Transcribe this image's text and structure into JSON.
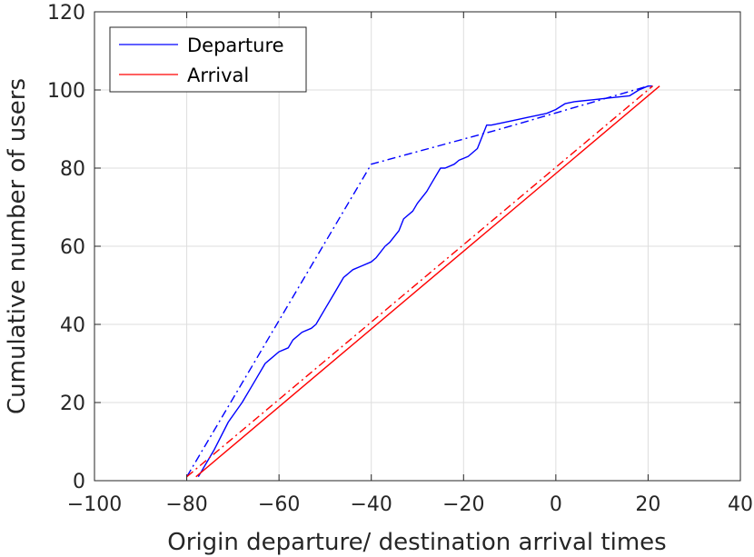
{
  "chart_data": {
    "type": "line",
    "title": "",
    "xlabel": "Origin departure/ destination arrival times",
    "ylabel": "Cumulative number of users",
    "xlim": [
      -100,
      40
    ],
    "ylim": [
      0,
      120
    ],
    "xticks": [
      "−100",
      "−80",
      "−60",
      "−40",
      "−20",
      "0",
      "20",
      "40"
    ],
    "yticks": [
      "0",
      "20",
      "40",
      "60",
      "80",
      "100",
      "120"
    ],
    "grid": true,
    "legend_position": "top-left",
    "legend": [
      {
        "label": "Departure",
        "color": "#0000ff"
      },
      {
        "label": "Arrival",
        "color": "#ff0000"
      }
    ],
    "series": [
      {
        "color": "#0000ff",
        "style": "solid",
        "x": [
          -77.5,
          -74,
          -71,
          -68,
          -66,
          -65,
          -63,
          -62,
          -60,
          -58,
          -57,
          -55,
          -53,
          -52,
          -50,
          -48,
          -46,
          -45,
          -44,
          -42,
          -40,
          -39,
          -37,
          -36,
          -34,
          -33,
          -31,
          -30,
          -28,
          -27,
          -25,
          -24,
          -22,
          -21,
          -19,
          -17,
          -16,
          -15,
          -14,
          -10,
          -6,
          -2,
          0,
          2,
          4,
          8,
          12,
          16,
          18,
          20,
          21
        ],
        "y": [
          1,
          8,
          15,
          20,
          24,
          26,
          30,
          31,
          33,
          34,
          36,
          38,
          39,
          40,
          44,
          48,
          52,
          53,
          54,
          55,
          56,
          57,
          60,
          61,
          64,
          67,
          69,
          71,
          74,
          76,
          80,
          80,
          81,
          82,
          83,
          85,
          88,
          91,
          91,
          92,
          93,
          94,
          95,
          96.5,
          97,
          97.5,
          98,
          98.5,
          100,
          101,
          101
        ]
      },
      {
        "color": "#0000ff",
        "style": "dashdot",
        "x": [
          -80,
          -40,
          -12,
          20,
          21
        ],
        "y": [
          1,
          81,
          90,
          101,
          101
        ]
      },
      {
        "color": "#ff0000",
        "style": "solid",
        "x": [
          -78,
          22.5
        ],
        "y": [
          1,
          101
        ]
      },
      {
        "color": "#ff0000",
        "style": "dashdot",
        "x": [
          -80,
          21
        ],
        "y": [
          1,
          101
        ]
      }
    ]
  }
}
